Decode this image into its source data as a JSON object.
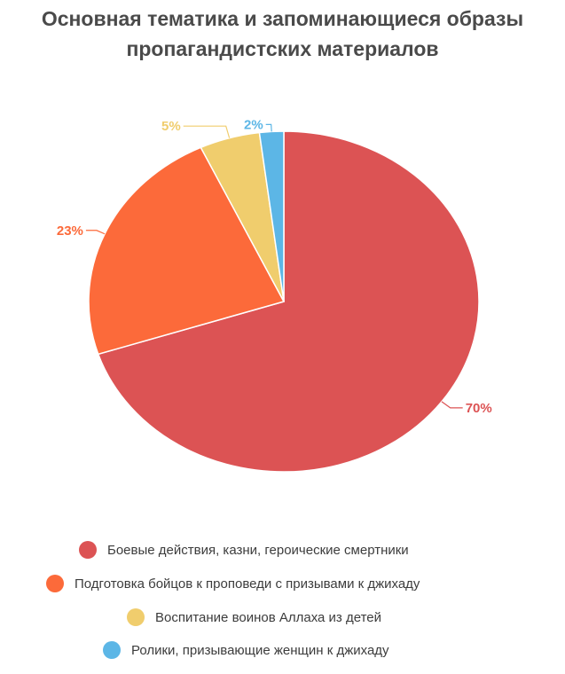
{
  "title_lines": [
    "Основная тематика и запоминающиеся образы",
    "пропагандистских материалов"
  ],
  "chart_data": {
    "type": "pie",
    "title": "Основная тематика и запоминающиеся образы пропагандистских материалов",
    "categories": [
      "Боевые действия, казни, героические смертники",
      "Подготовка бойцов к проповеди с призывами к джихаду",
      "Воспитание воинов Аллаха из детей",
      "Ролики, призывающие женщин к джихаду"
    ],
    "values": [
      70,
      23,
      5,
      2
    ],
    "labels": [
      "70%",
      "23%",
      "5%",
      "2%"
    ],
    "colors": [
      "#dc5354",
      "#fc6a3a",
      "#f0cd6d",
      "#5cb6e6"
    ],
    "legend_position": "bottom",
    "grid": false
  }
}
